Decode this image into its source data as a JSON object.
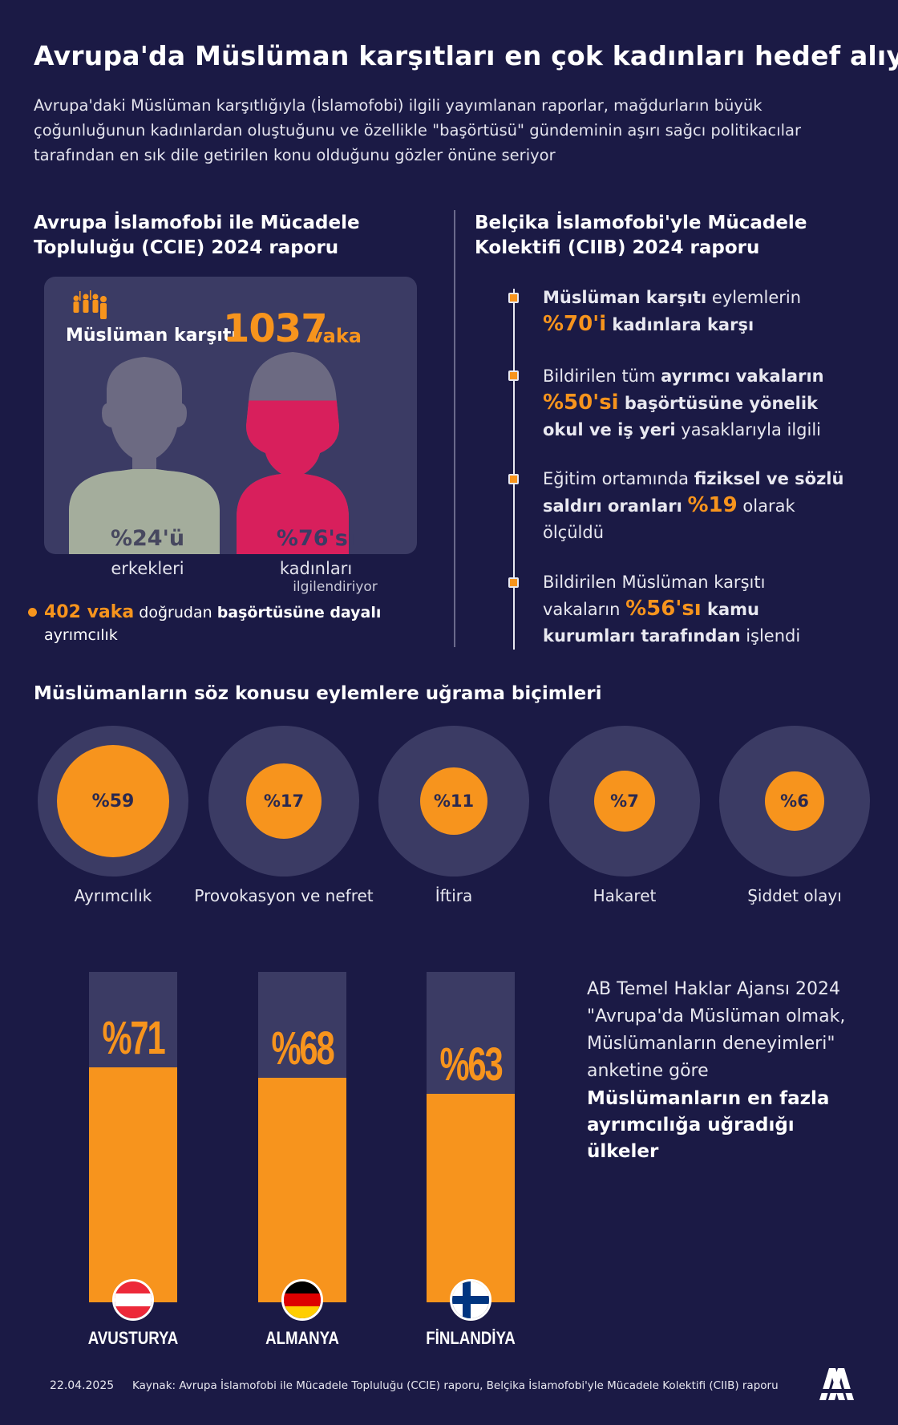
{
  "title": "Avrupa'da Müslüman karşıtları en çok kadınları hedef alıyor",
  "intro": "Avrupa'daki Müslüman karşıtlığıyla (İslamofobi) ilgili yayımlanan raporlar, mağdurların büyük çoğunluğunun kadınlardan oluştuğunu ve özellikle \"başörtüsü\" gündeminin aşırı sağcı politikacılar tarafından en sık dile getirilen konu olduğunu gözler önüne seriyor",
  "ccie": {
    "heading": "Avrupa İslamofobi ile Mücadele Topluluğu (CCIE) 2024 raporu",
    "label": "Müslüman karşıtı",
    "count": "1037",
    "unit": "vaka",
    "men_pct": "%24'ü",
    "men_share": 24,
    "men_label": "erkekleri",
    "women_pct": "%76'sı",
    "women_share": 76,
    "women_label": "kadınları",
    "women_label2": "ilgilendiriyor",
    "note_count": "402 vaka",
    "note_mid": " doğrudan ",
    "note_bold": "başörtüsüne dayalı",
    "note_end": " ayrımcılık"
  },
  "ciib": {
    "heading": "Belçika İslamofobi'yle Mücadele Kolektifi (CIIB) 2024 raporu",
    "items": [
      {
        "a": "Müslüman karşıtı",
        "b": " eylemlerin",
        "c": "%70'i",
        "d": " kadınlara karşı"
      },
      {
        "a": "Bildirilen tüm ",
        "b": "ayrımcı vakaların",
        "c": "%50'si",
        "d": " başörtüsüne yönelik okul ve iş yeri",
        "e": " yasaklarıyla ilgili"
      },
      {
        "a": "Eğitim ortamında ",
        "b": "fiziksel ve sözlü saldırı oranları",
        "c": "%19",
        "d": " olarak ölçüldü"
      },
      {
        "a": "Bildirilen Müslüman karşıtı vakaların ",
        "c": "%56'sı",
        "d": " kamu kurumları tarafından",
        "e": " işlendi"
      }
    ]
  },
  "forms": {
    "title": "Müslümanların söz konusu eylemlere uğrama biçimleri",
    "items": [
      {
        "pct": "%59",
        "value": 59,
        "label": "Ayrımcılık"
      },
      {
        "pct": "%17",
        "value": 17,
        "label": "Provokasyon ve nefret"
      },
      {
        "pct": "%11",
        "value": 11,
        "label": "İftira"
      },
      {
        "pct": "%7",
        "value": 7,
        "label": "Hakaret"
      },
      {
        "pct": "%6",
        "value": 6,
        "label": "Şiddet olayı"
      }
    ]
  },
  "countries": {
    "items": [
      {
        "pct": "%71",
        "value": 71,
        "name": "AVUSTURYA",
        "flag": "austria-flag"
      },
      {
        "pct": "%68",
        "value": 68,
        "name": "ALMANYA",
        "flag": "germany-flag"
      },
      {
        "pct": "%63",
        "value": 63,
        "name": "FİNLANDİYA",
        "flag": "finland-flag"
      }
    ],
    "source_text": "AB Temel Haklar Ajansı 2024 \"Avrupa'da Müslüman olmak, Müslümanların deneyimleri\" anketine göre",
    "bold_text": "Müslümanların en fazla ayrımcılığa uğradığı ülkeler"
  },
  "footer": {
    "date": "22.04.2025",
    "source": "Kaynak: Avrupa İslamofobi ile Mücadele Topluluğu (CCIE) raporu, Belçika İslamofobi'yle Mücadele Kolektifi (CIIB) raporu",
    "logo": "AA"
  },
  "colors": {
    "background": "#1b1a45",
    "accent": "#f7941d",
    "panel": "#3b3b64",
    "women": "#d81f5c",
    "men": "#a4ad9c"
  }
}
